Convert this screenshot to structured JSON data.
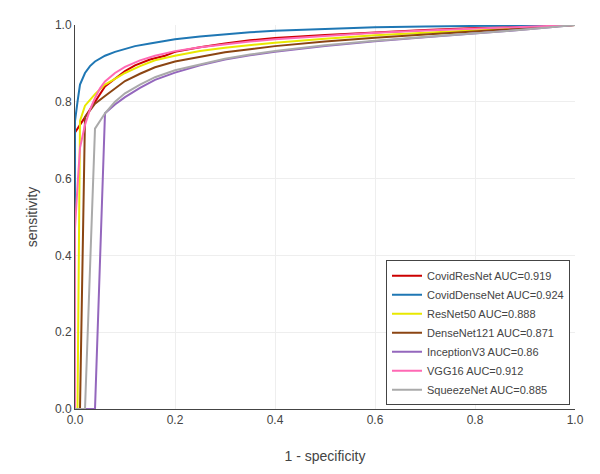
{
  "chart_data": {
    "type": "line",
    "xlabel": "1 - specificity",
    "ylabel": "sensitivity",
    "xlim": [
      0.0,
      1.0
    ],
    "ylim": [
      0.0,
      1.0
    ],
    "xticks": [
      {
        "value": 0.0,
        "label": "0.0"
      },
      0.2,
      0.4,
      0.6,
      0.8,
      {
        "value": 1.0,
        "label": "1.0"
      }
    ],
    "yticks": [
      {
        "value": 0.0,
        "label": "0.0"
      },
      0.2,
      0.4,
      0.6,
      0.8,
      {
        "value": 1.0,
        "label": "1.0"
      }
    ],
    "grid": true,
    "legend": "lower right",
    "series": [
      {
        "name": "CovidResNet AUC=0.919",
        "color": "#cc0000",
        "x": [
          0.0,
          0.0,
          0.01,
          0.02,
          0.03,
          0.04,
          0.05,
          0.06,
          0.08,
          0.1,
          0.12,
          0.15,
          0.18,
          0.2,
          0.25,
          0.3,
          0.35,
          0.4,
          0.5,
          0.6,
          0.7,
          0.8,
          0.9,
          1.0
        ],
        "values": [
          0.0,
          0.72,
          0.74,
          0.76,
          0.78,
          0.8,
          0.82,
          0.84,
          0.86,
          0.88,
          0.895,
          0.91,
          0.92,
          0.93,
          0.942,
          0.952,
          0.96,
          0.966,
          0.974,
          0.981,
          0.987,
          0.992,
          0.996,
          1.0
        ]
      },
      {
        "name": "CovidDenseNet AUC=0.924",
        "color": "#1f77b4",
        "x": [
          0.0,
          0.0,
          0.005,
          0.01,
          0.02,
          0.03,
          0.04,
          0.05,
          0.06,
          0.08,
          0.1,
          0.12,
          0.15,
          0.18,
          0.2,
          0.25,
          0.3,
          0.35,
          0.4,
          0.5,
          0.6,
          0.7,
          0.8,
          0.9,
          1.0
        ],
        "values": [
          0.0,
          0.75,
          0.8,
          0.845,
          0.875,
          0.893,
          0.905,
          0.913,
          0.92,
          0.93,
          0.938,
          0.945,
          0.952,
          0.958,
          0.963,
          0.97,
          0.976,
          0.981,
          0.985,
          0.99,
          0.994,
          0.996,
          0.998,
          0.999,
          1.0
        ]
      },
      {
        "name": "ResNet50 AUC=0.888",
        "color": "#e8e800",
        "x": [
          0.0,
          0.0,
          0.005,
          0.01,
          0.02,
          0.04,
          0.06,
          0.08,
          0.1,
          0.13,
          0.16,
          0.2,
          0.25,
          0.3,
          0.35,
          0.4,
          0.5,
          0.6,
          0.7,
          0.8,
          0.9,
          1.0
        ],
        "values": [
          0.0,
          0.0,
          0.0,
          0.75,
          0.79,
          0.82,
          0.845,
          0.86,
          0.875,
          0.893,
          0.908,
          0.92,
          0.932,
          0.941,
          0.948,
          0.954,
          0.964,
          0.973,
          0.98,
          0.986,
          0.992,
          1.0
        ]
      },
      {
        "name": "DenseNet121 AUC=0.871",
        "color": "#8B4513",
        "x": [
          0.0,
          0.0,
          0.005,
          0.01,
          0.02,
          0.04,
          0.06,
          0.08,
          0.1,
          0.13,
          0.16,
          0.2,
          0.25,
          0.3,
          0.35,
          0.4,
          0.5,
          0.6,
          0.7,
          0.8,
          0.9,
          1.0
        ],
        "values": [
          0.0,
          0.0,
          0.0,
          0.0,
          0.76,
          0.795,
          0.815,
          0.835,
          0.854,
          0.873,
          0.89,
          0.905,
          0.918,
          0.929,
          0.937,
          0.945,
          0.957,
          0.967,
          0.975,
          0.983,
          0.991,
          1.0
        ]
      },
      {
        "name": "InceptionV3 AUC=0.86",
        "color": "#9467bd",
        "x": [
          0.0,
          0.0,
          0.005,
          0.01,
          0.02,
          0.04,
          0.06,
          0.08,
          0.1,
          0.13,
          0.16,
          0.2,
          0.25,
          0.3,
          0.35,
          0.4,
          0.5,
          0.6,
          0.7,
          0.8,
          0.9,
          1.0
        ],
        "values": [
          0.0,
          0.0,
          0.0,
          0.0,
          0.0,
          0.0,
          0.77,
          0.793,
          0.812,
          0.836,
          0.857,
          0.876,
          0.895,
          0.91,
          0.921,
          0.93,
          0.945,
          0.958,
          0.968,
          0.978,
          0.988,
          1.0
        ]
      },
      {
        "name": "VGG16 AUC=0.912",
        "color": "#ff69b4",
        "x": [
          0.0,
          0.0,
          0.005,
          0.01,
          0.02,
          0.03,
          0.04,
          0.05,
          0.06,
          0.08,
          0.1,
          0.13,
          0.16,
          0.2,
          0.25,
          0.3,
          0.35,
          0.4,
          0.5,
          0.6,
          0.7,
          0.8,
          0.9,
          1.0
        ],
        "values": [
          0.0,
          0.47,
          0.58,
          0.68,
          0.74,
          0.78,
          0.81,
          0.835,
          0.853,
          0.875,
          0.891,
          0.908,
          0.92,
          0.932,
          0.942,
          0.95,
          0.957,
          0.963,
          0.972,
          0.98,
          0.986,
          0.991,
          0.995,
          1.0
        ]
      },
      {
        "name": "SqueezeNet AUC=0.885",
        "color": "#aaaaaa",
        "x": [
          0.0,
          0.0,
          0.005,
          0.01,
          0.02,
          0.04,
          0.06,
          0.08,
          0.1,
          0.13,
          0.16,
          0.2,
          0.25,
          0.3,
          0.35,
          0.4,
          0.5,
          0.6,
          0.7,
          0.8,
          0.9,
          1.0
        ],
        "values": [
          0.0,
          0.0,
          0.0,
          0.0,
          0.0,
          0.73,
          0.77,
          0.8,
          0.822,
          0.845,
          0.864,
          0.882,
          0.898,
          0.912,
          0.923,
          0.932,
          0.947,
          0.959,
          0.969,
          0.978,
          0.988,
          1.0
        ]
      }
    ]
  }
}
